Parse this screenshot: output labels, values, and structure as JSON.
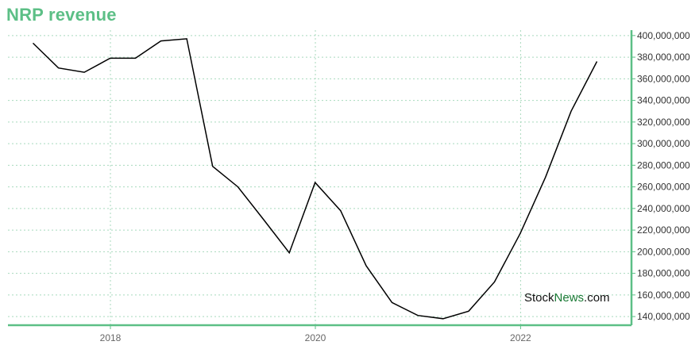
{
  "title": "NRP revenue",
  "watermark": {
    "part1": "Stock",
    "part2": "News",
    "part3": ".com"
  },
  "colors": {
    "title": "#5cbf86",
    "axis": "#5cbf86",
    "grid": "#a8d9bd",
    "line": "#000000"
  },
  "chart_data": {
    "type": "line",
    "title": "NRP revenue",
    "xlabel": "",
    "ylabel": "",
    "grid": true,
    "legend": "none",
    "x_ticks": [
      "2018",
      "2020",
      "2022"
    ],
    "y_ticks": [
      "140,000,000",
      "160,000,000",
      "180,000,000",
      "200,000,000",
      "220,000,000",
      "240,000,000",
      "260,000,000",
      "280,000,000",
      "300,000,000",
      "320,000,000",
      "340,000,000",
      "360,000,000",
      "380,000,000",
      "400,000,000"
    ],
    "ylim": [
      132000000,
      405000000
    ],
    "xlim": [
      "2017-01-01",
      "2023-01-31"
    ],
    "series": [
      {
        "x": [
          "2017-03-31",
          "2017-06-30",
          "2017-09-30",
          "2017-12-31",
          "2018-03-31",
          "2018-06-30",
          "2018-09-30",
          "2018-12-31",
          "2019-03-31",
          "2019-06-30",
          "2019-09-30",
          "2019-12-31",
          "2020-03-31",
          "2020-06-30",
          "2020-09-30",
          "2020-12-31",
          "2021-03-31",
          "2021-06-30",
          "2021-09-30",
          "2021-12-31",
          "2022-03-31",
          "2022-06-30",
          "2022-09-30"
        ],
        "values": [
          393000000,
          370000000,
          366000000,
          379000000,
          379000000,
          395000000,
          397000000,
          279000000,
          260000000,
          230000000,
          199000000,
          264000000,
          238000000,
          187000000,
          153000000,
          141000000,
          138000000,
          145000000,
          172000000,
          217000000,
          269000000,
          330000000,
          376000000
        ]
      }
    ]
  }
}
